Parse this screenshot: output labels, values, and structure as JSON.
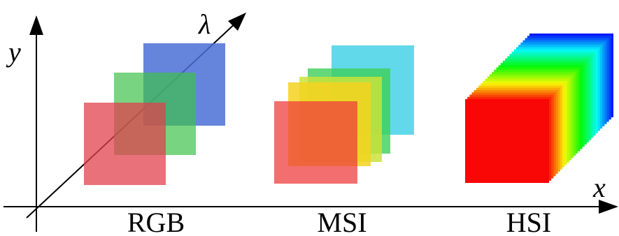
{
  "axes": {
    "y": "y",
    "lambda": "λ",
    "x": "x"
  },
  "groups": [
    {
      "label": "RGB"
    },
    {
      "label": "MSI"
    },
    {
      "label": "HSI"
    }
  ]
}
